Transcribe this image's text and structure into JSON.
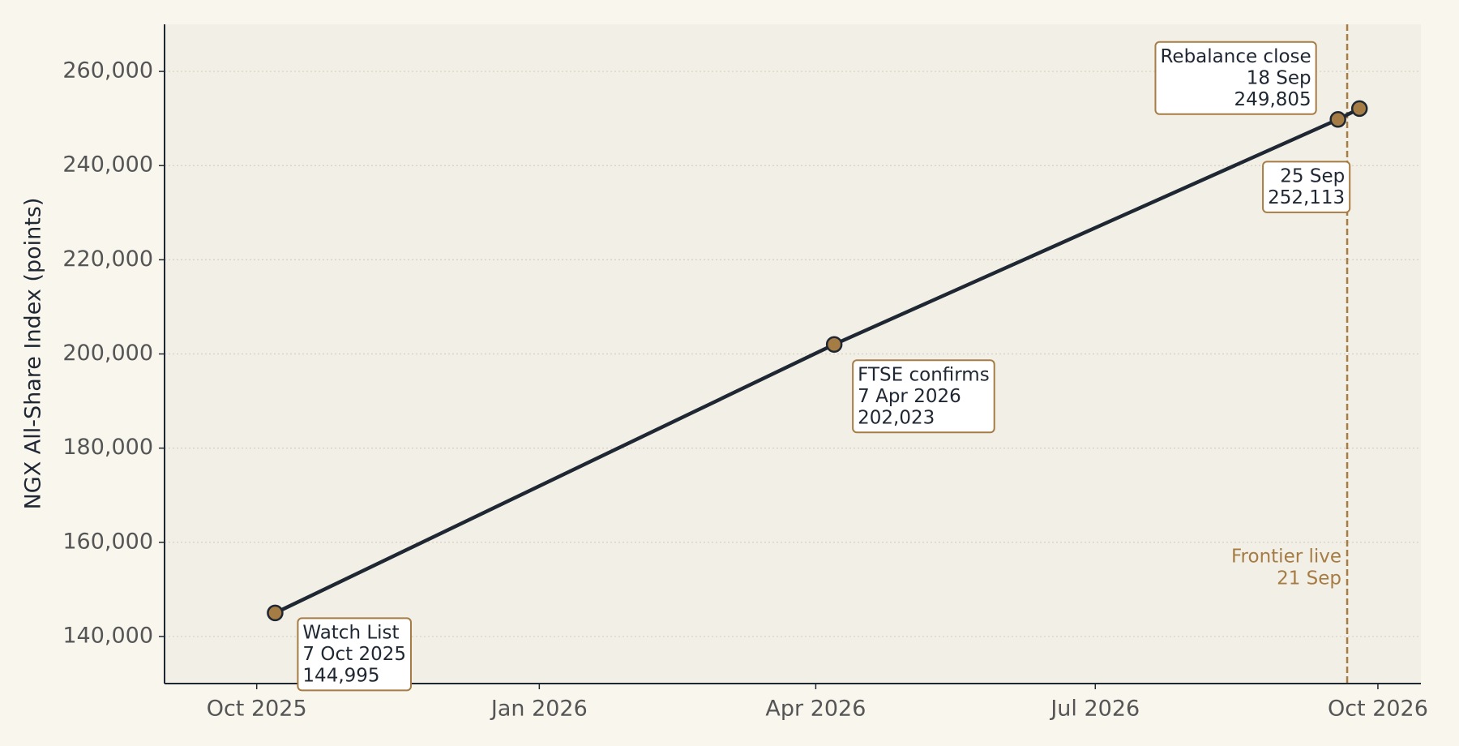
{
  "chart_data": {
    "type": "line",
    "ylabel": "NGX All-Share Index (points)",
    "x": [
      "2025-10-07",
      "2026-04-07",
      "2026-09-18",
      "2026-09-25"
    ],
    "values": [
      144995,
      202023,
      249805,
      252113
    ],
    "value_labels": [
      "144,995",
      "202,023",
      "249,805",
      "252,113"
    ],
    "point_labels": [
      [
        "Watch List",
        "7 Oct 2025"
      ],
      [
        "FTSE confirms",
        "7 Apr 2026"
      ],
      [
        "Rebalance close",
        "18 Sep"
      ],
      [
        "25 Sep"
      ]
    ],
    "color": "#1f2733",
    "marker_color": "#a67c45",
    "xlim": [
      "2025-09-01",
      "2026-10-15"
    ],
    "xticks": [
      {
        "value": "2025-10-01",
        "label": "Oct 2025"
      },
      {
        "value": "2026-01-01",
        "label": "Jan 2026"
      },
      {
        "value": "2026-04-01",
        "label": "Apr 2026"
      },
      {
        "value": "2026-07-01",
        "label": "Jul 2026"
      },
      {
        "value": "2026-10-01",
        "label": "Oct 2026"
      }
    ],
    "ylim": [
      130000,
      270000
    ],
    "yticks": [
      {
        "value": 140000,
        "label": "140,000"
      },
      {
        "value": 160000,
        "label": "160,000"
      },
      {
        "value": 180000,
        "label": "180,000"
      },
      {
        "value": 200000,
        "label": "200,000"
      },
      {
        "value": 220000,
        "label": "220,000"
      },
      {
        "value": 240000,
        "label": "240,000"
      },
      {
        "value": 260000,
        "label": "260,000"
      }
    ],
    "grid": true,
    "vline": {
      "x": "2026-09-21",
      "label": [
        "Frontier live",
        "21 Sep"
      ],
      "color": "#a67c45"
    }
  }
}
